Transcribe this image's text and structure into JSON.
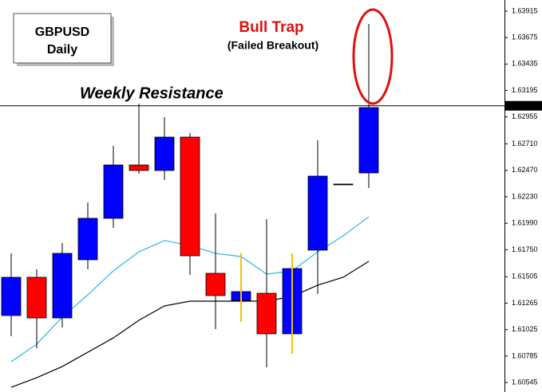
{
  "chart_data": {
    "type": "candlestick",
    "symbol": "GBPUSD",
    "period": "Daily",
    "annotations": {
      "resistance": "Weekly Resistance",
      "trap": "Bull Trap",
      "trap_note": "(Failed Breakout)"
    },
    "categories": [
      null,
      null,
      null,
      null,
      null,
      null,
      null,
      null,
      null,
      null,
      null,
      null,
      null,
      null,
      null
    ],
    "candles": {
      "open": [
        1.61153,
        1.615,
        1.61131,
        1.61659,
        1.62035,
        1.62519,
        1.62469,
        1.62772,
        1.61536,
        1.6129,
        1.61355,
        1.60987,
        1.61746,
        1.62346,
        1.62447
      ],
      "high": [
        1.61717,
        1.61572,
        1.61811,
        1.6218,
        1.62693,
        1.63076,
        1.62953,
        1.62809,
        1.62078,
        1.6137,
        1.62028,
        1.61579,
        1.62744,
        1.62346,
        1.63799
      ],
      "low": [
        1.60965,
        1.60856,
        1.61044,
        1.61572,
        1.61948,
        1.6244,
        1.62382,
        1.61522,
        1.6103,
        1.6129,
        1.60683,
        1.60987,
        1.61348,
        1.62346,
        1.6231
      ],
      "close": [
        1.615,
        1.61131,
        1.61717,
        1.62035,
        1.62519,
        1.62469,
        1.62772,
        1.61695,
        1.61334,
        1.6137,
        1.60987,
        1.61579,
        1.62418,
        1.62346,
        1.6304
      ]
    },
    "up_color": "#0000ff",
    "down_color": "#ff0000",
    "lines": [
      {
        "color": "#29b6e8",
        "values": [
          1.60734,
          1.60893,
          1.61138,
          1.61341,
          1.61558,
          1.61731,
          1.61833,
          1.61789,
          1.61717,
          1.61688,
          1.61529,
          1.61558,
          1.61731,
          1.61876,
          1.62049
        ]
      },
      {
        "color": "#000000",
        "values": [
          1.60502,
          1.60589,
          1.6069,
          1.6082,
          1.6095,
          1.6111,
          1.6124,
          1.61283,
          1.61283,
          1.61283,
          1.61283,
          1.61326,
          1.61428,
          1.615,
          1.61645
        ]
      }
    ],
    "hline": {
      "value": 1.63056
    },
    "ylim": [
      1.60459,
      1.64016
    ],
    "yticks": [
      1.63915,
      1.63675,
      1.63435,
      1.63195,
      1.62955,
      {
        "value": 1.6271,
        "label": "1.62710"
      },
      {
        "value": 1.6247,
        "label": "1.62470"
      },
      {
        "value": 1.6223,
        "label": "1.62230"
      },
      {
        "value": 1.6199,
        "label": "1.61990"
      },
      {
        "value": 1.6175,
        "label": "1.61750"
      },
      1.61505,
      1.61265,
      1.61025,
      1.60785,
      1.60545
    ]
  }
}
